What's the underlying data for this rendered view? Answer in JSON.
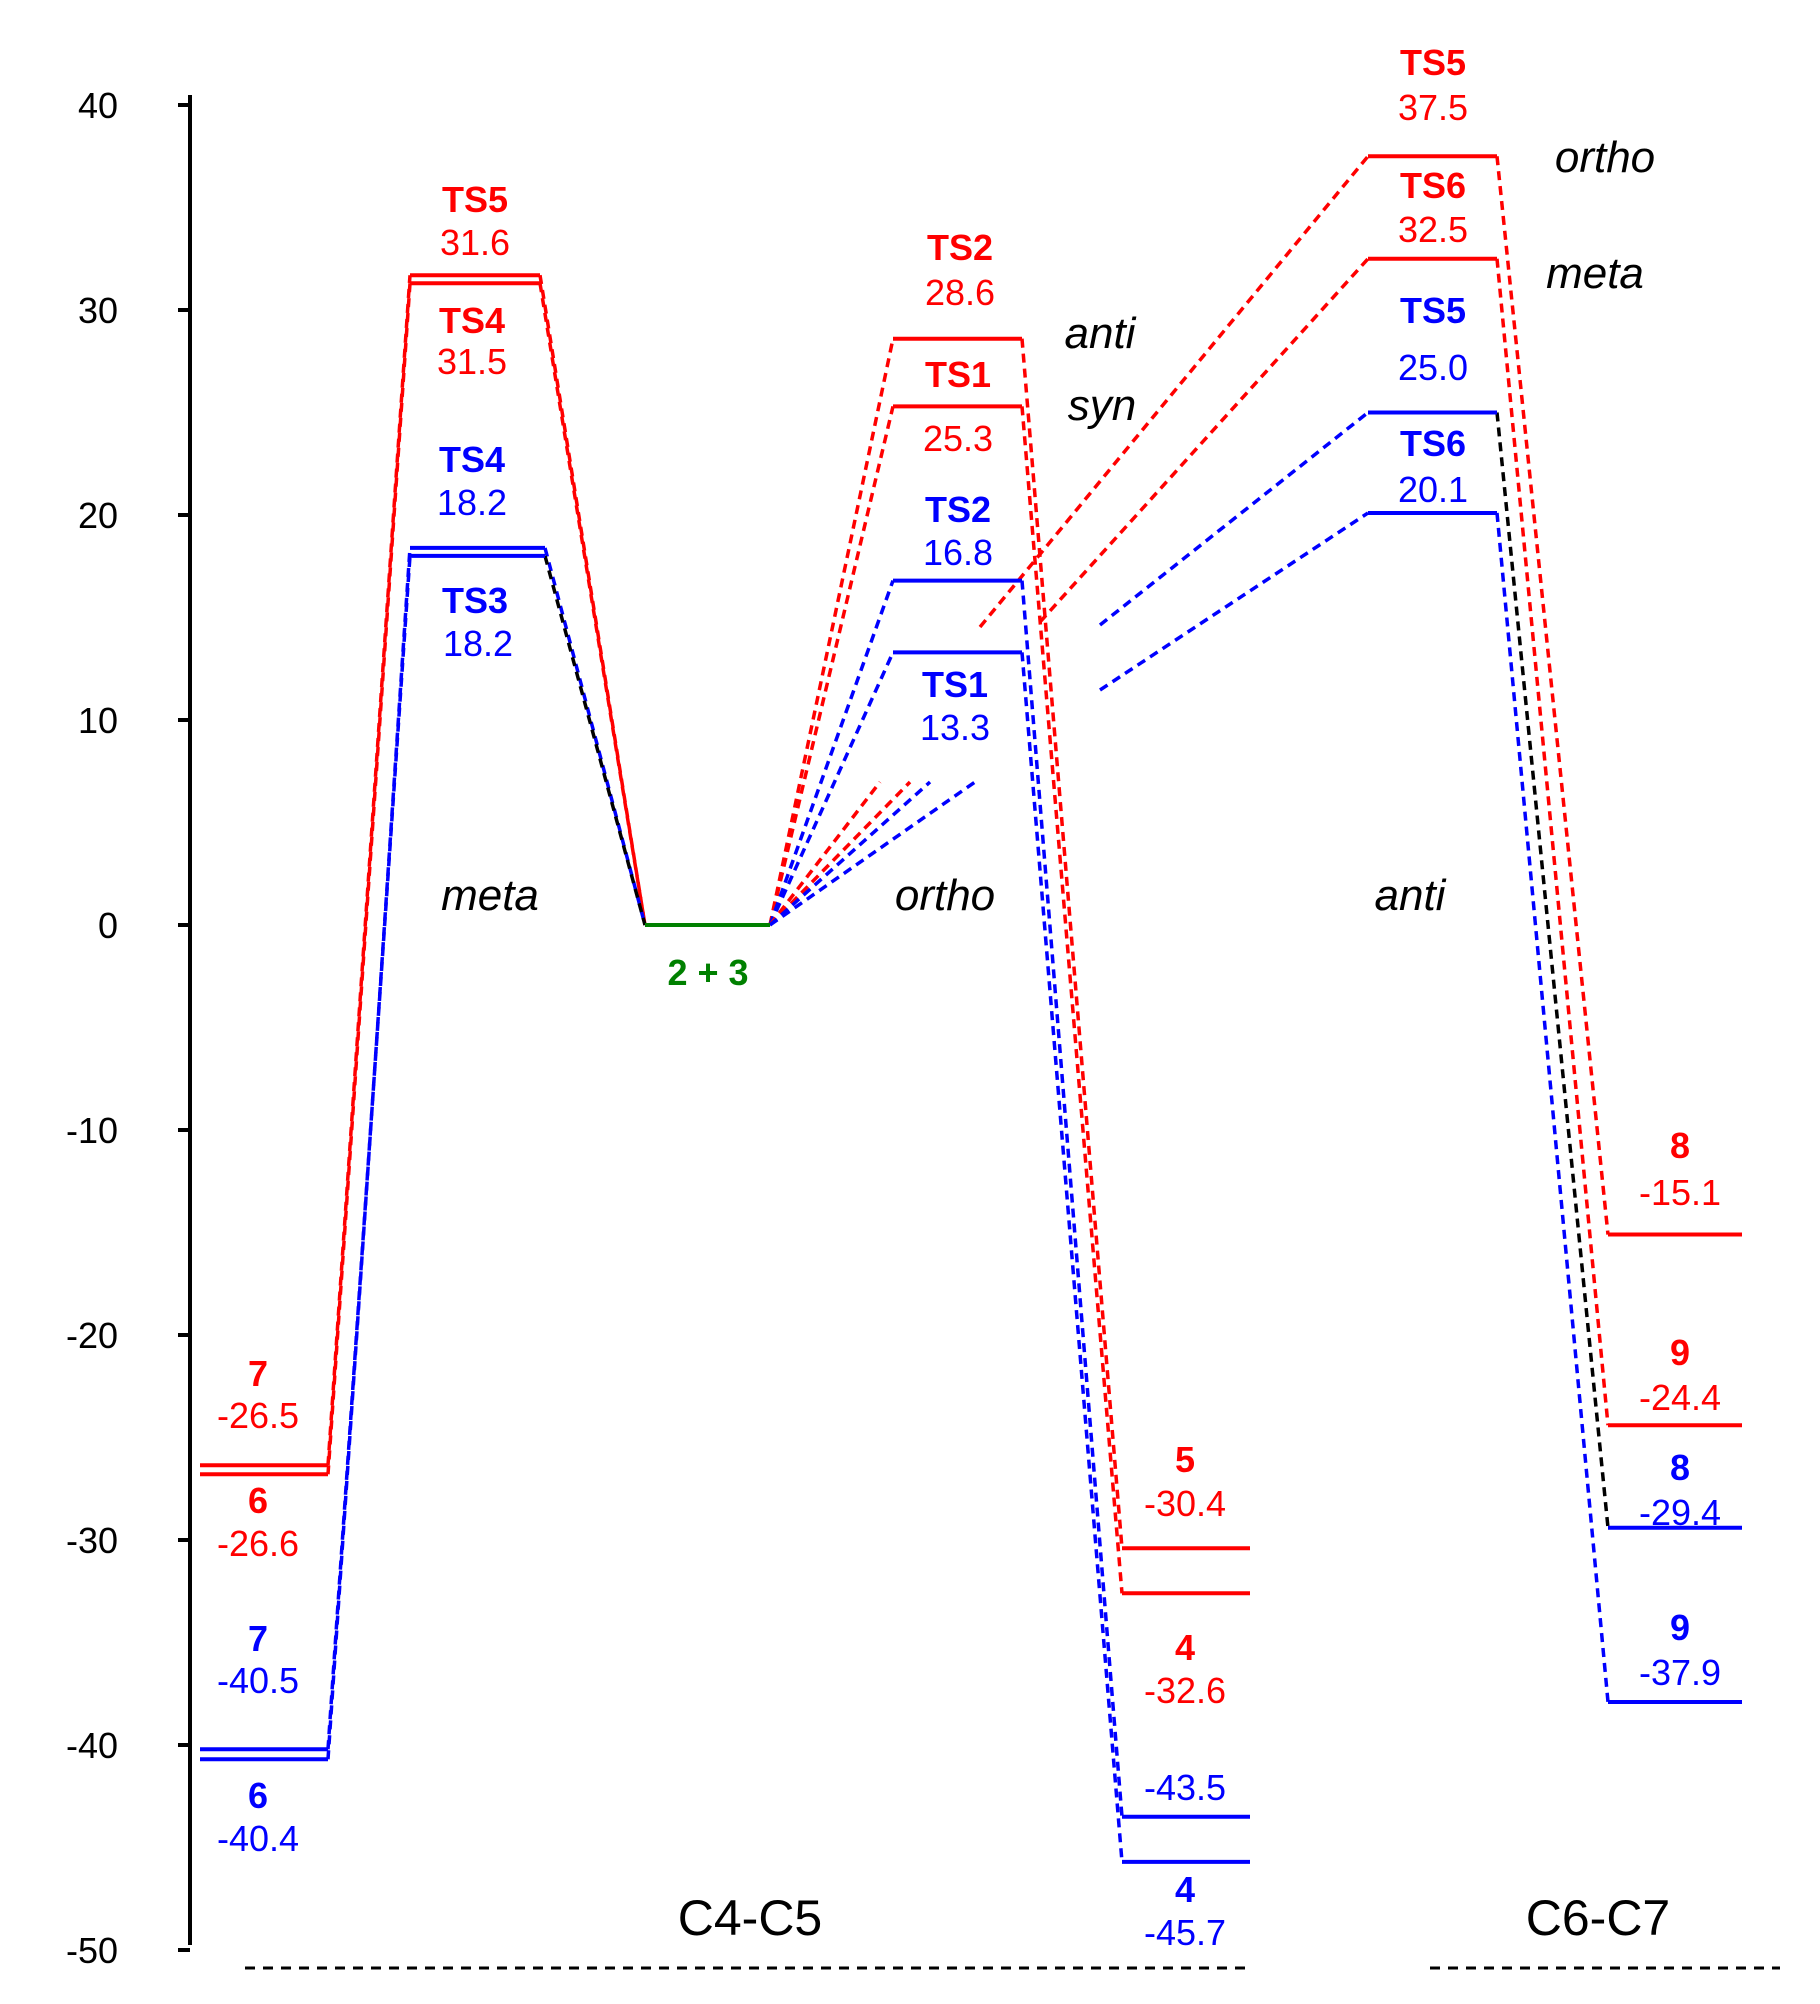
{
  "chart_data": {
    "type": "energy-profile",
    "title": "",
    "xlabel": "",
    "ylabel": "",
    "ylim": [
      -50,
      40
    ],
    "y_ticks": [
      "40",
      "30",
      "20",
      "10",
      "0",
      "-10",
      "-20",
      "-30",
      "-40",
      "-50"
    ],
    "colors": {
      "red": "#ff0000",
      "blue": "#0000ff",
      "green": "#008000",
      "black": "#000000"
    },
    "reactant": {
      "label": "2 + 3",
      "value": 0,
      "color": "green"
    },
    "region_labels": [
      "C4-C5",
      "C6-C7"
    ],
    "annotations": {
      "meta": "meta",
      "ortho": "ortho",
      "anti_mid": "anti",
      "anti_top": "anti",
      "syn": "syn",
      "ortho_top": "ortho",
      "meta_top": "meta"
    },
    "levels": [
      {
        "id": "p7r",
        "label": "7",
        "value_text": "-26.5",
        "value": -26.5,
        "color": "red",
        "column": "left-product"
      },
      {
        "id": "p6r",
        "label": "6",
        "value_text": "-26.6",
        "value": -26.6,
        "color": "red",
        "column": "left-product"
      },
      {
        "id": "p7b",
        "label": "7",
        "value_text": "-40.5",
        "value": -40.5,
        "color": "blue",
        "column": "left-product"
      },
      {
        "id": "p6b",
        "label": "6",
        "value_text": "-40.4",
        "value": -40.4,
        "color": "blue",
        "column": "left-product"
      },
      {
        "id": "ts5r_m",
        "label": "TS5",
        "value_text": "31.6",
        "value": 31.6,
        "color": "red",
        "column": "meta-ts"
      },
      {
        "id": "ts4r_m",
        "label": "TS4",
        "value_text": "31.5",
        "value": 31.5,
        "color": "red",
        "column": "meta-ts"
      },
      {
        "id": "ts4b_m",
        "label": "TS4",
        "value_text": "18.2",
        "value": 18.2,
        "color": "blue",
        "column": "meta-ts"
      },
      {
        "id": "ts3b_m",
        "label": "TS3",
        "value_text": "18.2",
        "value": 18.2,
        "color": "blue",
        "column": "meta-ts"
      },
      {
        "id": "ts2r_o",
        "label": "TS2",
        "value_text": "28.6",
        "value": 28.6,
        "color": "red",
        "column": "ortho-ts"
      },
      {
        "id": "ts1r_o",
        "label": "TS1",
        "value_text": "25.3",
        "value": 25.3,
        "color": "red",
        "column": "ortho-ts"
      },
      {
        "id": "ts2b_o",
        "label": "TS2",
        "value_text": "16.8",
        "value": 16.8,
        "color": "blue",
        "column": "ortho-ts"
      },
      {
        "id": "ts1b_o",
        "label": "TS1",
        "value_text": "13.3",
        "value": 13.3,
        "color": "blue",
        "column": "ortho-ts"
      },
      {
        "id": "p5r",
        "label": "5",
        "value_text": "-30.4",
        "value": -30.4,
        "color": "red",
        "column": "mid-product"
      },
      {
        "id": "p4r",
        "label": "4",
        "value_text": "-32.6",
        "value": -32.6,
        "color": "red",
        "column": "mid-product"
      },
      {
        "id": "p5b",
        "label": "",
        "value_text": "-43.5",
        "value": -43.5,
        "color": "blue",
        "column": "mid-product"
      },
      {
        "id": "p4b",
        "label": "4",
        "value_text": "-45.7",
        "value": -45.7,
        "color": "blue",
        "column": "mid-product"
      },
      {
        "id": "ts5r_a",
        "label": "TS5",
        "value_text": "37.5",
        "value": 37.5,
        "color": "red",
        "column": "anti-ts"
      },
      {
        "id": "ts6r_a",
        "label": "TS6",
        "value_text": "32.5",
        "value": 32.5,
        "color": "red",
        "column": "anti-ts"
      },
      {
        "id": "ts5b_a",
        "label": "TS5",
        "value_text": "25.0",
        "value": 25.0,
        "color": "blue",
        "column": "anti-ts"
      },
      {
        "id": "ts6b_a",
        "label": "TS6",
        "value_text": "20.1",
        "value": 20.1,
        "color": "blue",
        "column": "anti-ts"
      },
      {
        "id": "p8r",
        "label": "8",
        "value_text": "-15.1",
        "value": -15.1,
        "color": "red",
        "column": "right-product"
      },
      {
        "id": "p9r",
        "label": "9",
        "value_text": "-24.4",
        "value": -24.4,
        "color": "red",
        "column": "right-product"
      },
      {
        "id": "p8b",
        "label": "8",
        "value_text": "-29.4",
        "value": -29.4,
        "color": "blue",
        "column": "right-product"
      },
      {
        "id": "p9b",
        "label": "9",
        "value_text": "-37.9",
        "value": -37.9,
        "color": "blue",
        "column": "right-product"
      }
    ]
  }
}
